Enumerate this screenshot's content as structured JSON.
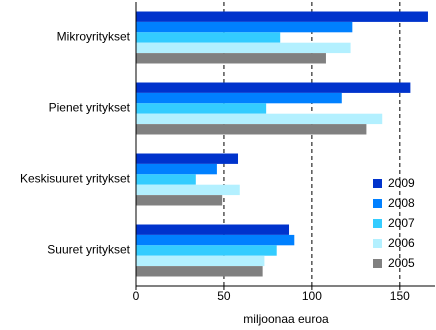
{
  "chart_data": {
    "type": "barh",
    "x_label": "miljoonaa euroa",
    "categories": [
      "Mikroyritykset",
      "Pienet yritykset",
      "Keskisuuret yritykset",
      "Suuret yritykset"
    ],
    "series": [
      {
        "name": "2009",
        "color": "#0033cc",
        "values": [
          166,
          156,
          58,
          87
        ]
      },
      {
        "name": "2008",
        "color": "#0080ff",
        "values": [
          123,
          117,
          46,
          90
        ]
      },
      {
        "name": "2007",
        "color": "#33ccff",
        "values": [
          82,
          74,
          34,
          80
        ]
      },
      {
        "name": "2006",
        "color": "#b3f0ff",
        "values": [
          122,
          140,
          59,
          73
        ]
      },
      {
        "name": "2005",
        "color": "#808080",
        "values": [
          108,
          131,
          49,
          72
        ]
      }
    ],
    "xlim": [
      0,
      170
    ],
    "xticks": [
      0,
      50,
      100,
      150
    ],
    "grid": true,
    "legend": "lower-right"
  }
}
